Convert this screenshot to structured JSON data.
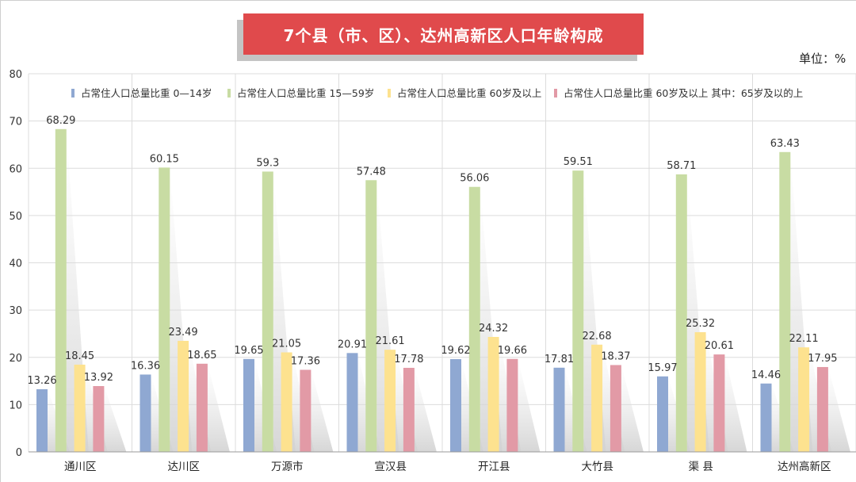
{
  "header": {
    "title": "7个县（市、区）、达州高新区人口年龄构成",
    "unit_label": "单位：%"
  },
  "chart_data": {
    "type": "bar",
    "title": "7个县（市、区）、达州高新区人口年龄构成",
    "xlabel": "",
    "ylabel": "",
    "ylim": [
      0,
      80
    ],
    "yticks": [
      0,
      10,
      20,
      30,
      40,
      50,
      60,
      70,
      80
    ],
    "grid": true,
    "legend_position": "top",
    "categories": [
      "通川区",
      "达川区",
      "万源市",
      "宣汉县",
      "开江县",
      "大竹县",
      "渠  县",
      "达州高新区"
    ],
    "series": [
      {
        "name": "占常住人口总量比重 0—14岁",
        "color": "#8fa8d2",
        "values": [
          13.26,
          16.36,
          19.65,
          20.91,
          19.62,
          17.81,
          15.97,
          14.46
        ]
      },
      {
        "name": "占常住人口总量比重 15—59岁",
        "color": "#c8dca3",
        "values": [
          68.29,
          60.15,
          59.3,
          57.48,
          56.06,
          59.51,
          58.71,
          63.43
        ]
      },
      {
        "name": "占常住人口总量比重 60岁及以上",
        "color": "#fde28f",
        "values": [
          18.45,
          23.49,
          21.05,
          21.61,
          24.32,
          22.68,
          25.32,
          22.11
        ]
      },
      {
        "name": "占常住人口总量比重 60岁及以上 其中：65岁及以的上",
        "color": "#e29aa6",
        "values": [
          13.92,
          18.65,
          17.36,
          17.78,
          19.66,
          18.37,
          20.61,
          17.95
        ]
      }
    ]
  }
}
